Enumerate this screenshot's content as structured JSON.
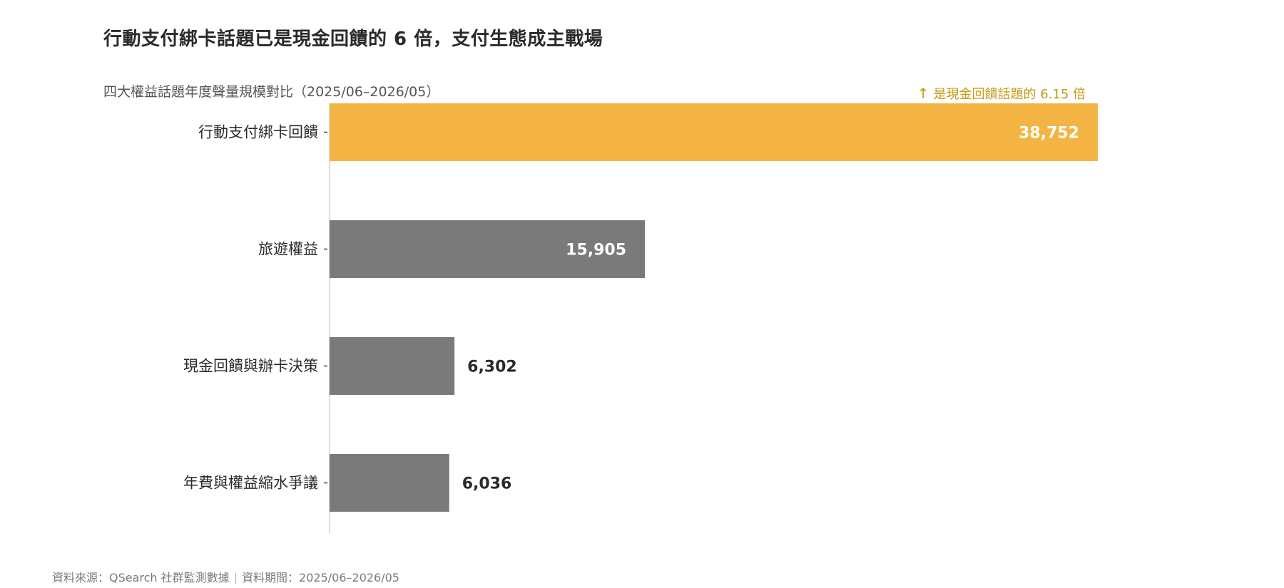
{
  "title": "行動支付綁卡話題已是現金回饋的 6 倍，支付生態成主戰場",
  "subtitle": "四大權益話題年度聲量規模對比（2025/06–2026/05）",
  "annotation": {
    "arrow": "↑",
    "text": "是現金回饋話題的 6.15 倍",
    "color": "#c49a12"
  },
  "footer": {
    "source": "資料來源：QSearch 社群監測數據",
    "separator": "|",
    "period": "資料期間：2025/06–2026/05"
  },
  "colors": {
    "highlight": "#f3b443",
    "default_bar": "#7a7a7a",
    "axis": "#d0d0d0",
    "label_inside": "#ffffff",
    "label_outside": "#2a2a2a"
  },
  "chart_data": {
    "type": "bar",
    "orientation": "horizontal",
    "categories": [
      "行動支付綁卡回饋",
      "旅遊權益",
      "現金回饋與辦卡決策",
      "年費與權益縮水爭議"
    ],
    "values": [
      38752,
      15905,
      6302,
      6036
    ],
    "value_labels": [
      "38,752",
      "15,905",
      "6,302",
      "6,036"
    ],
    "highlight_index": 0,
    "xlim": [
      0,
      38752
    ],
    "grid": false,
    "legend": "none"
  }
}
